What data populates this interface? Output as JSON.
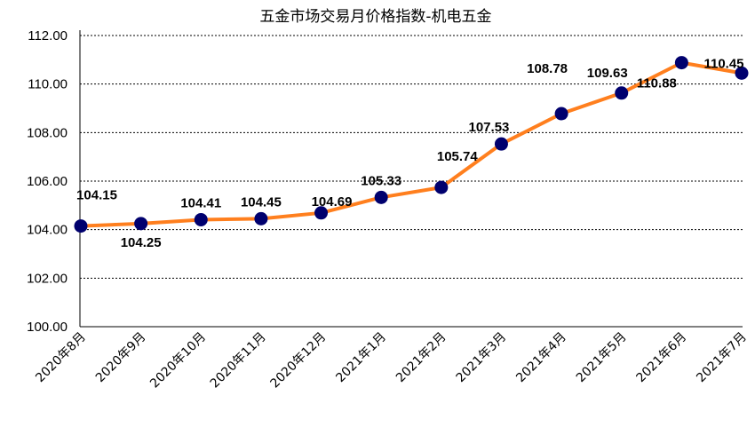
{
  "chart_data": {
    "type": "line",
    "title": "五金市场交易月价格指数-机电五金",
    "categories": [
      "2020年8月",
      "2020年9月",
      "2020年10月",
      "2020年11月",
      "2020年12月",
      "2021年1月",
      "2021年2月",
      "2021年3月",
      "2021年4月",
      "2021年5月",
      "2021年6月",
      "2021年7月"
    ],
    "values": [
      104.15,
      104.25,
      104.41,
      104.45,
      104.69,
      105.33,
      105.74,
      107.53,
      108.78,
      109.63,
      110.88,
      110.45
    ],
    "value_labels": [
      "104.15",
      "104.25",
      "104.41",
      "104.45",
      "104.69",
      "105.33",
      "105.74",
      "107.53",
      "108.78",
      "109.63",
      "110.88",
      "110.45"
    ],
    "yticks": [
      "100.00",
      "102.00",
      "104.00",
      "106.00",
      "108.00",
      "110.00",
      "112.00"
    ],
    "ylim": [
      100,
      112
    ],
    "xlabel": "",
    "ylabel": "",
    "grid": true,
    "line_color": "#FF7F1E",
    "marker_color": "#00006E",
    "grid_color": "#000000",
    "legend": "none"
  }
}
